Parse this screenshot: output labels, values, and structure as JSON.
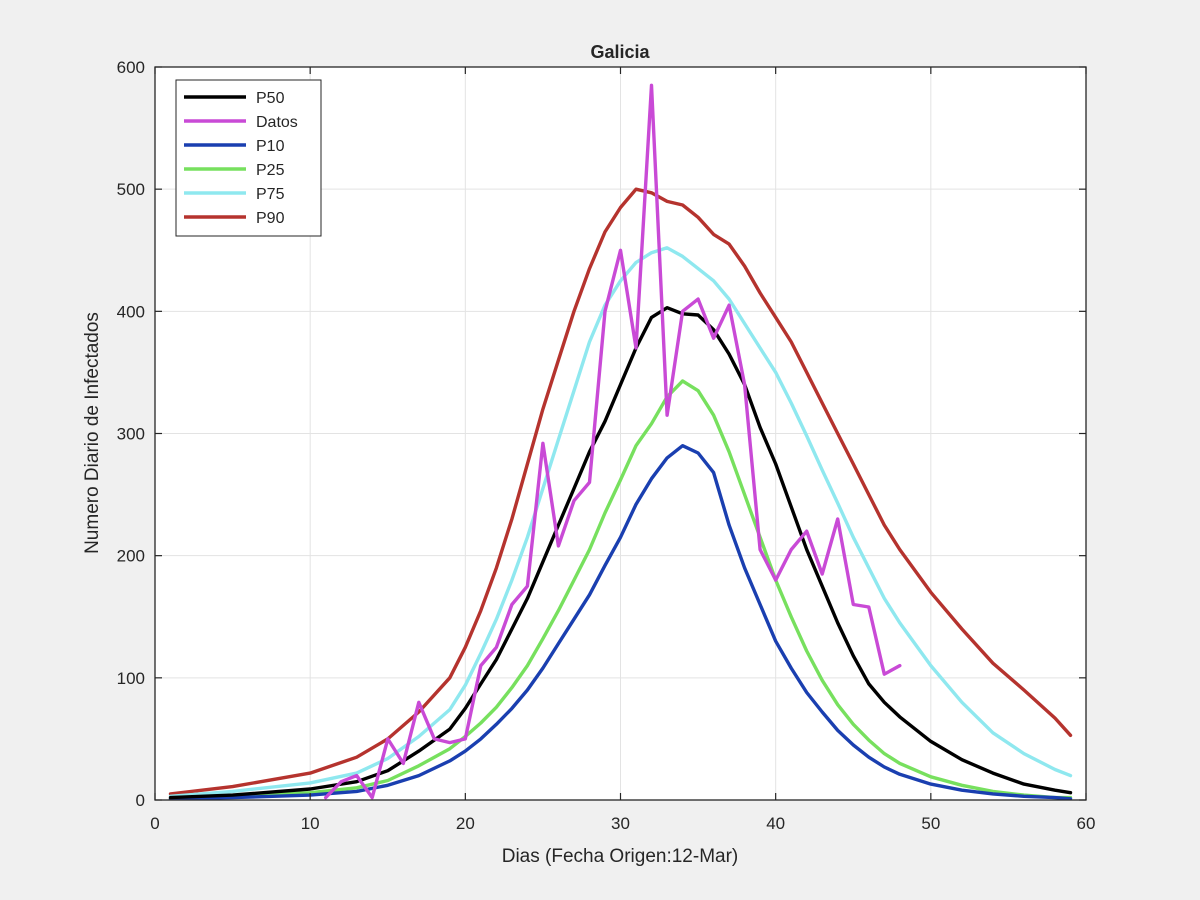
{
  "chart_data": {
    "type": "line",
    "title": "Galicia",
    "xlabel": "Dias (Fecha Origen:12-Mar)",
    "ylabel": "Numero Diario de Infectados",
    "xlim": [
      0,
      60
    ],
    "ylim": [
      0,
      600
    ],
    "xticks": [
      0,
      10,
      20,
      30,
      40,
      50,
      60
    ],
    "yticks": [
      0,
      100,
      200,
      300,
      400,
      500,
      600
    ],
    "grid": true,
    "legend_position": "top-left",
    "series": [
      {
        "name": "P50",
        "color": "#000000",
        "x": [
          1,
          5,
          10,
          13,
          15,
          17,
          19,
          20,
          21,
          22,
          23,
          24,
          25,
          26,
          27,
          28,
          29,
          30,
          31,
          32,
          33,
          34,
          35,
          36,
          37,
          38,
          39,
          40,
          41,
          42,
          43,
          44,
          45,
          46,
          47,
          48,
          50,
          52,
          54,
          56,
          58,
          59
        ],
        "y": [
          2,
          4,
          9,
          15,
          24,
          40,
          58,
          75,
          95,
          115,
          140,
          165,
          195,
          225,
          255,
          285,
          310,
          340,
          370,
          395,
          403,
          398,
          397,
          385,
          365,
          340,
          305,
          275,
          240,
          205,
          175,
          145,
          118,
          95,
          80,
          68,
          48,
          33,
          22,
          13,
          8,
          6
        ]
      },
      {
        "name": "Datos",
        "color": "#c94ad6",
        "x": [
          11,
          12,
          13,
          14,
          15,
          16,
          17,
          18,
          19,
          20,
          21,
          22,
          23,
          24,
          25,
          26,
          27,
          28,
          29,
          30,
          31,
          32,
          33,
          34,
          35,
          36,
          37,
          38,
          39,
          40,
          41,
          42,
          43,
          44,
          45,
          46,
          47,
          48
        ],
        "y": [
          2,
          15,
          20,
          2,
          50,
          30,
          80,
          50,
          47,
          50,
          110,
          125,
          160,
          175,
          292,
          208,
          245,
          260,
          400,
          450,
          370,
          585,
          315,
          400,
          410,
          378,
          405,
          340,
          205,
          180,
          205,
          220,
          185,
          230,
          160,
          158,
          103,
          110
        ]
      },
      {
        "name": "P10",
        "color": "#1a3fb0",
        "x": [
          1,
          5,
          10,
          13,
          15,
          17,
          19,
          20,
          21,
          22,
          23,
          24,
          25,
          26,
          27,
          28,
          29,
          30,
          31,
          32,
          33,
          34,
          35,
          36,
          37,
          38,
          39,
          40,
          41,
          42,
          43,
          44,
          45,
          46,
          47,
          48,
          50,
          52,
          54,
          56,
          58,
          59
        ],
        "y": [
          1,
          2,
          4,
          7,
          12,
          20,
          32,
          40,
          50,
          62,
          75,
          90,
          108,
          128,
          148,
          168,
          192,
          215,
          242,
          263,
          280,
          290,
          284,
          268,
          225,
          190,
          160,
          130,
          108,
          88,
          72,
          57,
          45,
          35,
          27,
          21,
          13,
          8,
          5,
          3,
          2,
          1
        ]
      },
      {
        "name": "P25",
        "color": "#77e05e",
        "x": [
          1,
          5,
          10,
          13,
          15,
          17,
          19,
          20,
          21,
          22,
          23,
          24,
          25,
          26,
          27,
          28,
          29,
          30,
          31,
          32,
          33,
          34,
          35,
          36,
          37,
          38,
          39,
          40,
          41,
          42,
          43,
          44,
          45,
          46,
          47,
          48,
          50,
          52,
          54,
          56,
          58,
          59
        ],
        "y": [
          1,
          3,
          6,
          10,
          16,
          28,
          42,
          52,
          63,
          76,
          92,
          110,
          132,
          155,
          180,
          205,
          235,
          262,
          290,
          308,
          330,
          343,
          335,
          315,
          285,
          250,
          215,
          180,
          150,
          122,
          98,
          78,
          62,
          49,
          38,
          30,
          19,
          12,
          7,
          4,
          2,
          2
        ]
      },
      {
        "name": "P75",
        "color": "#8fe8ef",
        "x": [
          1,
          5,
          10,
          13,
          15,
          17,
          19,
          20,
          21,
          22,
          23,
          24,
          25,
          26,
          27,
          28,
          29,
          30,
          31,
          32,
          33,
          34,
          35,
          36,
          37,
          38,
          39,
          40,
          41,
          42,
          43,
          44,
          45,
          46,
          47,
          48,
          50,
          52,
          54,
          56,
          58,
          59
        ],
        "y": [
          3,
          7,
          14,
          22,
          34,
          52,
          74,
          94,
          120,
          148,
          180,
          215,
          255,
          295,
          335,
          375,
          405,
          425,
          440,
          448,
          452,
          445,
          435,
          425,
          410,
          390,
          370,
          350,
          325,
          298,
          270,
          243,
          215,
          190,
          165,
          145,
          110,
          80,
          55,
          38,
          25,
          20
        ]
      },
      {
        "name": "P90",
        "color": "#b5332e",
        "x": [
          1,
          5,
          10,
          13,
          15,
          17,
          19,
          20,
          21,
          22,
          23,
          24,
          25,
          26,
          27,
          28,
          29,
          30,
          31,
          32,
          33,
          34,
          35,
          36,
          37,
          38,
          39,
          40,
          41,
          42,
          43,
          44,
          45,
          46,
          47,
          48,
          50,
          52,
          54,
          56,
          58,
          59
        ],
        "y": [
          5,
          11,
          22,
          35,
          50,
          72,
          100,
          125,
          155,
          190,
          230,
          275,
          320,
          360,
          400,
          435,
          465,
          485,
          500,
          497,
          490,
          487,
          477,
          463,
          455,
          437,
          415,
          395,
          375,
          350,
          325,
          300,
          275,
          250,
          225,
          205,
          170,
          140,
          112,
          90,
          67,
          53
        ]
      }
    ]
  }
}
